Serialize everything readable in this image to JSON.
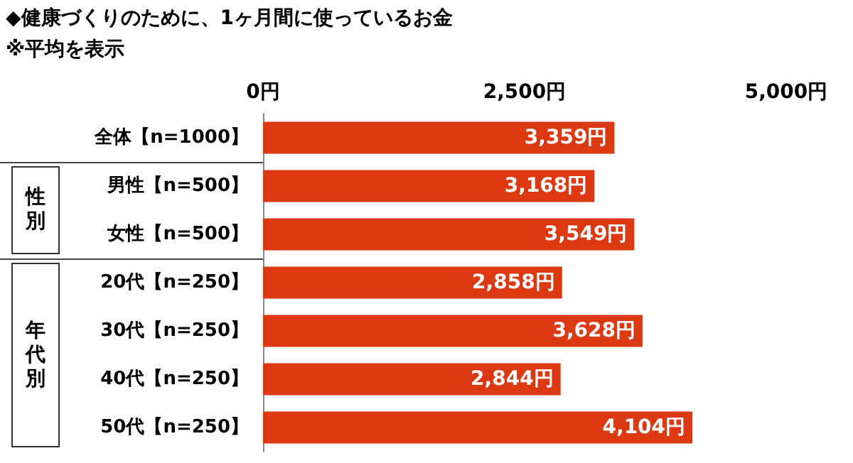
{
  "chart_data": {
    "type": "bar",
    "orientation": "horizontal",
    "title": "◆健康づくりのために、1ヶ月間に使っているお金",
    "subtitle": "※平均を表示",
    "categories": [
      "全体【n=1000】",
      "男性【n=500】",
      "女性【n=500】",
      "20代【n=250】",
      "30代【n=250】",
      "40代【n=250】",
      "50代【n=250】"
    ],
    "values": [
      3359,
      3168,
      3549,
      2858,
      3628,
      2844,
      4104
    ],
    "value_labels": [
      "3,359円",
      "3,168円",
      "3,549円",
      "2,858円",
      "3,628円",
      "2,844円",
      "4,104円"
    ],
    "color": "#dc3912",
    "xlim": [
      0,
      5000
    ],
    "xticks": [
      {
        "value": 0,
        "label": "0円"
      },
      {
        "value": 2500,
        "label": "2,500円"
      },
      {
        "value": 5000,
        "label": "5,000円"
      }
    ],
    "annotations": [
      "性別",
      "年代別"
    ],
    "grid": false
  }
}
